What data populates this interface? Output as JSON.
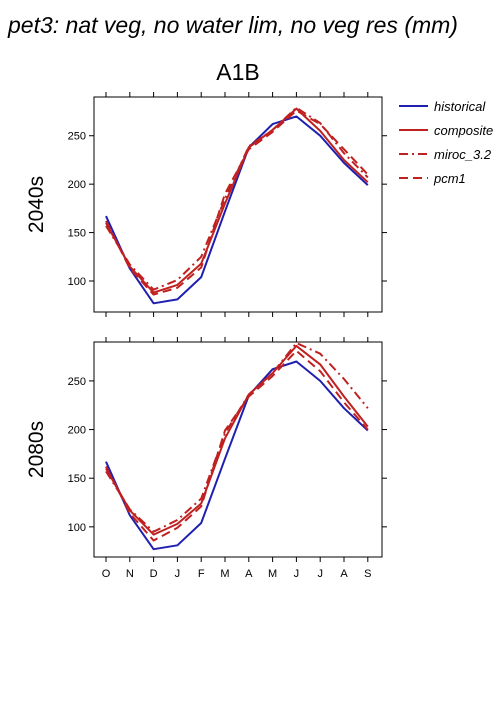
{
  "page_title": "pet3: nat veg, no water lim, no veg res (mm)",
  "chart_data": {
    "type": "line",
    "title": "A1B",
    "months": [
      "O",
      "N",
      "D",
      "J",
      "F",
      "M",
      "A",
      "M",
      "J",
      "J",
      "A",
      "S"
    ],
    "legend": {
      "position": "top-right",
      "entries": [
        {
          "name": "historical",
          "color": "#2020b0",
          "dash": "solid"
        },
        {
          "name": "composite",
          "color": "#c02020",
          "dash": "solid"
        },
        {
          "name": "miroc_3.2",
          "color": "#c02020",
          "dash": "dashdot"
        },
        {
          "name": "pcm1",
          "color": "#c02020",
          "dash": "dash"
        }
      ]
    },
    "panels": [
      {
        "ylabel": "2040s",
        "ylim": [
          68,
          290
        ],
        "yticks": [
          100,
          150,
          200,
          250
        ],
        "series": [
          {
            "name": "historical",
            "values": [
              167,
              113,
              77,
              81,
              104,
              172,
              238,
              262,
              270,
              250,
              222,
              199
            ]
          },
          {
            "name": "composite",
            "values": [
              160,
              115,
              88,
              96,
              118,
              180,
              238,
              256,
              278,
              255,
              225,
              202
            ]
          },
          {
            "name": "miroc_3.2",
            "values": [
              157,
              117,
              91,
              101,
              125,
              185,
              239,
              256,
              279,
              263,
              232,
              207
            ]
          },
          {
            "name": "pcm1",
            "values": [
              162,
              113,
              86,
              93,
              114,
              190,
              236,
              254,
              276,
              262,
              236,
              210
            ]
          }
        ]
      },
      {
        "ylabel": "2080s",
        "ylim": [
          69,
          290
        ],
        "yticks": [
          100,
          150,
          200,
          250
        ],
        "series": [
          {
            "name": "historical",
            "values": [
              167,
              112,
              77,
              81,
              104,
              170,
              235,
              262,
              270,
              250,
              222,
              199
            ]
          },
          {
            "name": "composite",
            "values": [
              160,
              117,
              92,
              103,
              124,
              191,
              236,
              258,
              286,
              267,
              234,
              203
            ]
          },
          {
            "name": "miroc_3.2",
            "values": [
              157,
              118,
              95,
              107,
              129,
              196,
              236,
              258,
              289,
              278,
              252,
              222
            ]
          },
          {
            "name": "pcm1",
            "values": [
              162,
              114,
              86,
              99,
              121,
              199,
              234,
              255,
              281,
              260,
              228,
              200
            ]
          }
        ]
      }
    ]
  }
}
